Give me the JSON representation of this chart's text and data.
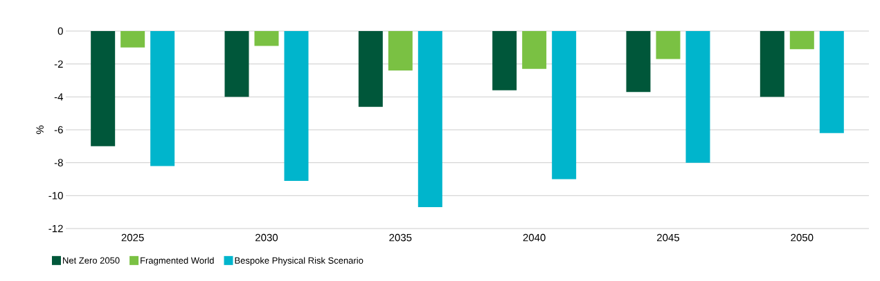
{
  "chart_data": {
    "type": "bar",
    "ylabel": "%",
    "categories": [
      "2025",
      "2030",
      "2035",
      "2040",
      "2045",
      "2050"
    ],
    "series": [
      {
        "name": "Net Zero 2050",
        "color": "#00573a",
        "values": [
          -7.0,
          -4.0,
          -4.6,
          -3.6,
          -3.7,
          -4.0
        ]
      },
      {
        "name": "Fragmented World",
        "color": "#7ac143",
        "values": [
          -1.0,
          -0.9,
          -2.4,
          -2.3,
          -1.7,
          -1.1
        ]
      },
      {
        "name": "Bespoke Physical Risk Scenario",
        "color": "#00b5cc",
        "values": [
          -8.2,
          -9.1,
          -10.7,
          -9.0,
          -8.0,
          -6.2
        ]
      }
    ],
    "ylim": [
      -12,
      0
    ],
    "yticks": [
      -12,
      -10,
      -8,
      -6,
      -4,
      -2,
      0
    ],
    "grid": "y",
    "legend": "bottom"
  }
}
